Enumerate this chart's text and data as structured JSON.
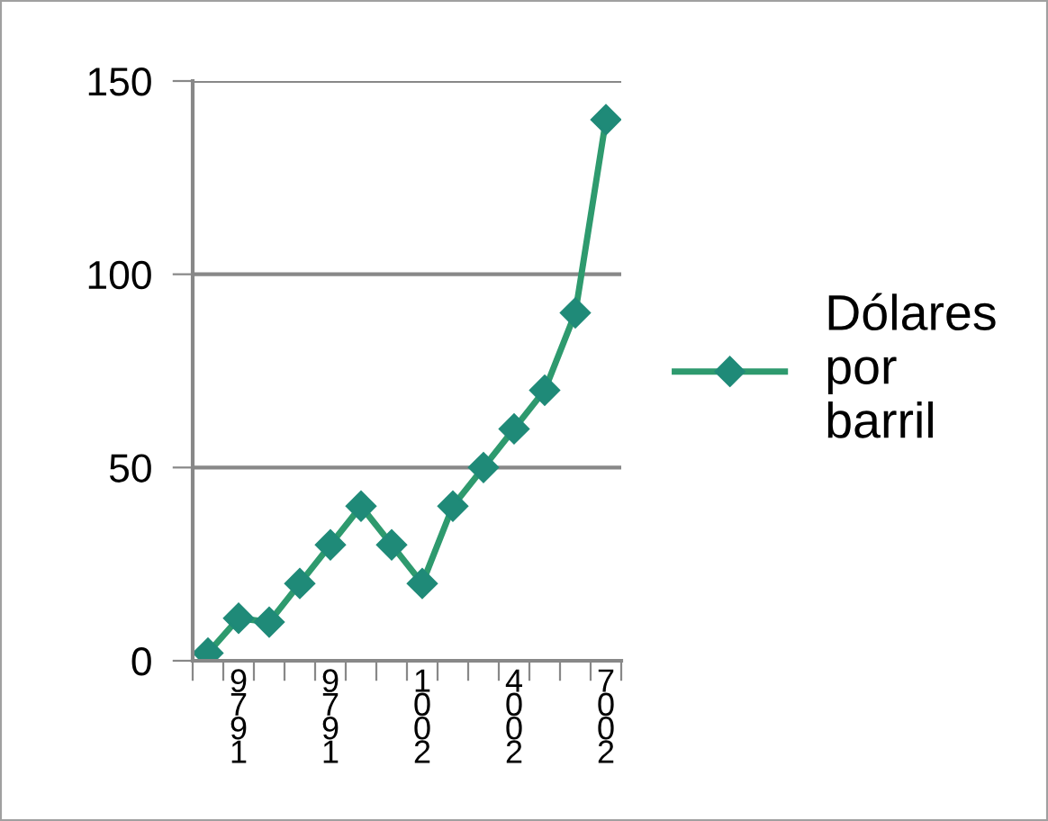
{
  "chart_data": {
    "type": "line",
    "categories": [
      null,
      "9791",
      null,
      null,
      "9791",
      null,
      null,
      "1002",
      null,
      null,
      "4002",
      null,
      null,
      "7002"
    ],
    "series": [
      {
        "name": "Dólares\npor\nbarril",
        "color": "#2e9a6e",
        "values": [
          2,
          11,
          10,
          20,
          30,
          40,
          30,
          20,
          40,
          50,
          60,
          70,
          90,
          140
        ]
      }
    ],
    "ylim": [
      0,
      150
    ],
    "yticks": [
      0,
      50,
      100,
      150
    ],
    "grid": "y",
    "legend": "right",
    "marker": "diamond",
    "line_style": "solid"
  }
}
